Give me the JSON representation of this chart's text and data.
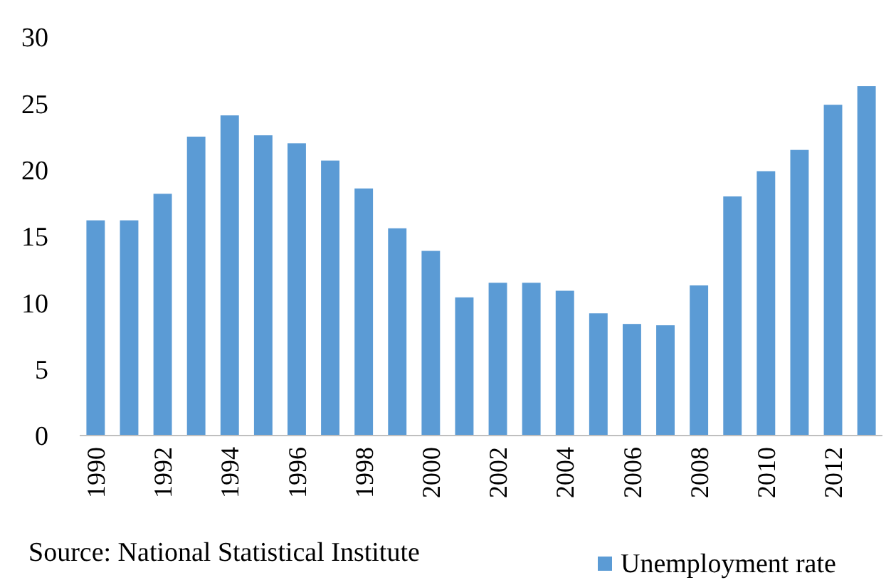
{
  "chart_data": {
    "type": "bar",
    "categories": [
      "1990",
      null,
      "1992",
      null,
      "1994",
      null,
      "1996",
      null,
      "1998",
      null,
      "2000",
      null,
      "2002",
      null,
      "2004",
      null,
      "2006",
      null,
      "2008",
      null,
      "2010",
      null,
      "2012",
      null
    ],
    "series": [
      {
        "name": "Unemployment rate",
        "color": "#5b9bd5",
        "values": [
          16.2,
          16.2,
          18.2,
          22.5,
          24.1,
          22.6,
          22.0,
          20.7,
          18.6,
          15.6,
          13.9,
          10.4,
          11.5,
          11.5,
          10.9,
          9.2,
          8.4,
          8.3,
          11.3,
          18.0,
          19.9,
          21.5,
          24.9,
          26.3
        ]
      }
    ],
    "ylim": [
      0,
      30
    ],
    "yticks": [
      0,
      5,
      10,
      15,
      20,
      25,
      30
    ],
    "grid": false,
    "legend": "bottom right",
    "annotations": [
      "Source: National Statistical Institute"
    ]
  }
}
